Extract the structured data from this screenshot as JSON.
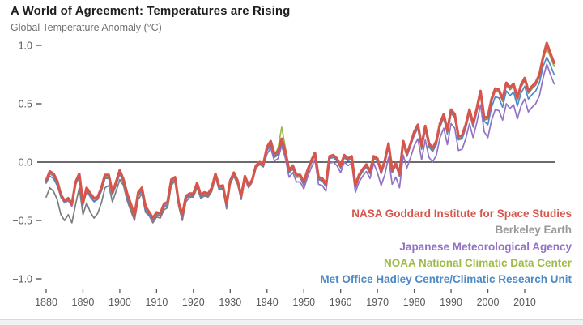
{
  "page": {
    "title": "A World of Agreement: Temperatures are Rising",
    "subtitle": "Global Temperature Anomaly (°C)"
  },
  "chart_data": {
    "type": "line",
    "title": "A World of Agreement: Temperatures are Rising",
    "ylabel": "Global Temperature Anomaly (°C)",
    "xlabel": "",
    "x_start": 1880,
    "x_end": 2018,
    "x_ticks": [
      1880,
      1890,
      1900,
      1910,
      1920,
      1930,
      1940,
      1950,
      1960,
      1970,
      1980,
      1990,
      2000,
      2010
    ],
    "y_ticks": [
      1.0,
      0.5,
      0.0,
      -0.5,
      -1.0
    ],
    "ylim": [
      -1.0,
      1.0
    ],
    "grid": false,
    "zero_line": true,
    "legend_position": "bottom-right",
    "axis_color": "#58595b",
    "zero_line_color": "#3a3a3c",
    "series": [
      {
        "name": "NASA Goddard Institute for Space Studies",
        "color": "#d6564c",
        "line_width": 3.2,
        "values": [
          -0.16,
          -0.08,
          -0.1,
          -0.16,
          -0.28,
          -0.33,
          -0.31,
          -0.36,
          -0.17,
          -0.1,
          -0.35,
          -0.22,
          -0.27,
          -0.31,
          -0.3,
          -0.22,
          -0.11,
          -0.11,
          -0.26,
          -0.17,
          -0.07,
          -0.15,
          -0.27,
          -0.36,
          -0.46,
          -0.26,
          -0.22,
          -0.38,
          -0.43,
          -0.48,
          -0.43,
          -0.44,
          -0.36,
          -0.34,
          -0.15,
          -0.13,
          -0.35,
          -0.45,
          -0.29,
          -0.27,
          -0.27,
          -0.18,
          -0.28,
          -0.26,
          -0.27,
          -0.22,
          -0.1,
          -0.21,
          -0.2,
          -0.36,
          -0.16,
          -0.09,
          -0.16,
          -0.29,
          -0.12,
          -0.2,
          -0.15,
          -0.03,
          0.0,
          -0.02,
          0.13,
          0.18,
          0.07,
          0.09,
          0.2,
          0.09,
          -0.07,
          -0.03,
          -0.11,
          -0.11,
          -0.17,
          -0.07,
          0.01,
          0.08,
          -0.13,
          -0.14,
          -0.19,
          0.05,
          0.06,
          0.03,
          -0.03,
          0.06,
          0.03,
          0.05,
          -0.2,
          -0.11,
          -0.06,
          -0.02,
          -0.08,
          0.05,
          0.03,
          -0.08,
          0.01,
          0.16,
          -0.07,
          -0.01,
          -0.1,
          0.18,
          0.07,
          0.16,
          0.26,
          0.32,
          0.14,
          0.31,
          0.16,
          0.12,
          0.18,
          0.33,
          0.41,
          0.27,
          0.45,
          0.41,
          0.22,
          0.23,
          0.32,
          0.45,
          0.33,
          0.46,
          0.61,
          0.38,
          0.39,
          0.54,
          0.63,
          0.62,
          0.54,
          0.68,
          0.64,
          0.67,
          0.55,
          0.66,
          0.72,
          0.61,
          0.65,
          0.68,
          0.75,
          0.9,
          1.02,
          0.93,
          0.85
        ]
      },
      {
        "name": "Berkeley Earth",
        "color": "#7b7c7f",
        "legend_color": "#98999b",
        "line_width": 1.7,
        "values": [
          -0.3,
          -0.22,
          -0.25,
          -0.32,
          -0.45,
          -0.5,
          -0.45,
          -0.52,
          -0.36,
          -0.22,
          -0.45,
          -0.35,
          -0.43,
          -0.48,
          -0.44,
          -0.35,
          -0.22,
          -0.2,
          -0.34,
          -0.25,
          -0.15,
          -0.2,
          -0.33,
          -0.42,
          -0.5,
          -0.32,
          -0.27,
          -0.43,
          -0.46,
          -0.52,
          -0.47,
          -0.48,
          -0.41,
          -0.39,
          -0.2,
          -0.16,
          -0.38,
          -0.5,
          -0.34,
          -0.3,
          -0.3,
          -0.22,
          -0.31,
          -0.29,
          -0.3,
          -0.25,
          -0.13,
          -0.24,
          -0.23,
          -0.4,
          -0.19,
          -0.12,
          -0.19,
          -0.32,
          -0.15,
          -0.22,
          -0.17,
          -0.05,
          -0.02,
          -0.04,
          0.1,
          0.14,
          0.04,
          0.06,
          0.16,
          0.06,
          -0.09,
          -0.06,
          -0.13,
          -0.13,
          -0.2,
          -0.09,
          -0.01,
          0.06,
          -0.15,
          -0.16,
          -0.21,
          0.03,
          0.04,
          0.01,
          -0.05,
          0.04,
          0.01,
          0.03,
          -0.22,
          -0.13,
          -0.08,
          -0.04,
          -0.1,
          0.03,
          0.01,
          -0.1,
          -0.01,
          0.14,
          -0.09,
          -0.03,
          -0.12,
          0.16,
          0.05,
          0.14,
          0.24,
          0.3,
          0.12,
          0.29,
          0.14,
          0.1,
          0.16,
          0.31,
          0.39,
          0.25,
          0.43,
          0.39,
          0.2,
          0.21,
          0.3,
          0.43,
          0.31,
          0.44,
          0.59,
          0.36,
          0.37,
          0.52,
          0.61,
          0.6,
          0.52,
          0.66,
          0.62,
          0.65,
          0.53,
          0.64,
          0.7,
          0.59,
          0.63,
          0.66,
          0.73,
          0.88,
          0.98,
          0.91,
          0.82
        ]
      },
      {
        "name": "Japanese Meteorological Agency",
        "color": "#9272c4",
        "line_width": 1.7,
        "values": [
          -0.18,
          -0.1,
          -0.12,
          -0.18,
          -0.3,
          -0.35,
          -0.33,
          -0.38,
          -0.19,
          -0.12,
          -0.37,
          -0.24,
          -0.29,
          -0.33,
          -0.32,
          -0.24,
          -0.13,
          -0.13,
          -0.28,
          -0.19,
          -0.09,
          -0.17,
          -0.29,
          -0.38,
          -0.48,
          -0.28,
          -0.24,
          -0.4,
          -0.45,
          -0.5,
          -0.45,
          -0.46,
          -0.38,
          -0.36,
          -0.17,
          -0.15,
          -0.37,
          -0.47,
          -0.31,
          -0.29,
          -0.29,
          -0.2,
          -0.3,
          -0.28,
          -0.29,
          -0.24,
          -0.12,
          -0.23,
          -0.22,
          -0.38,
          -0.18,
          -0.11,
          -0.18,
          -0.31,
          -0.14,
          -0.22,
          -0.17,
          -0.05,
          -0.02,
          -0.04,
          0.07,
          0.12,
          0.01,
          0.03,
          0.14,
          0.03,
          -0.13,
          -0.09,
          -0.17,
          -0.17,
          -0.23,
          -0.13,
          -0.05,
          0.02,
          -0.19,
          -0.2,
          -0.25,
          -0.01,
          0.0,
          -0.03,
          -0.09,
          0.0,
          -0.03,
          -0.01,
          -0.26,
          -0.17,
          -0.12,
          -0.08,
          -0.14,
          -0.01,
          -0.09,
          -0.2,
          -0.11,
          0.04,
          -0.19,
          -0.13,
          -0.22,
          0.06,
          -0.05,
          0.04,
          0.14,
          0.2,
          0.02,
          0.19,
          0.04,
          0.0,
          0.06,
          0.21,
          0.29,
          0.15,
          0.33,
          0.29,
          0.1,
          0.11,
          0.2,
          0.33,
          0.21,
          0.34,
          0.49,
          0.26,
          0.21,
          0.36,
          0.45,
          0.44,
          0.36,
          0.5,
          0.46,
          0.49,
          0.37,
          0.48,
          0.54,
          0.43,
          0.47,
          0.5,
          0.57,
          0.72,
          0.84,
          0.75,
          0.67
        ]
      },
      {
        "name": "NOAA National Climatic Data Center",
        "color": "#a0ba48",
        "line_width": 1.7,
        "values": [
          -0.17,
          -0.09,
          -0.11,
          -0.17,
          -0.29,
          -0.34,
          -0.32,
          -0.37,
          -0.18,
          -0.11,
          -0.36,
          -0.23,
          -0.28,
          -0.32,
          -0.31,
          -0.23,
          -0.12,
          -0.12,
          -0.27,
          -0.18,
          -0.08,
          -0.16,
          -0.28,
          -0.37,
          -0.47,
          -0.27,
          -0.23,
          -0.39,
          -0.44,
          -0.49,
          -0.44,
          -0.45,
          -0.37,
          -0.35,
          -0.16,
          -0.14,
          -0.36,
          -0.46,
          -0.3,
          -0.28,
          -0.28,
          -0.19,
          -0.29,
          -0.27,
          -0.28,
          -0.23,
          -0.11,
          -0.22,
          -0.21,
          -0.37,
          -0.17,
          -0.1,
          -0.17,
          -0.3,
          -0.13,
          -0.21,
          -0.16,
          -0.04,
          -0.01,
          -0.03,
          0.12,
          0.17,
          0.06,
          0.12,
          0.3,
          0.12,
          -0.08,
          -0.04,
          -0.12,
          -0.12,
          -0.18,
          -0.08,
          0.0,
          0.07,
          -0.14,
          -0.15,
          -0.2,
          0.04,
          0.05,
          0.02,
          -0.04,
          0.05,
          0.02,
          0.04,
          -0.21,
          -0.12,
          -0.07,
          -0.03,
          -0.09,
          0.04,
          0.02,
          -0.09,
          0.0,
          0.15,
          -0.08,
          -0.02,
          -0.11,
          0.17,
          0.06,
          0.15,
          0.25,
          0.31,
          0.13,
          0.3,
          0.15,
          0.11,
          0.17,
          0.32,
          0.4,
          0.26,
          0.44,
          0.4,
          0.21,
          0.22,
          0.31,
          0.44,
          0.32,
          0.45,
          0.6,
          0.37,
          0.38,
          0.53,
          0.62,
          0.61,
          0.53,
          0.67,
          0.63,
          0.66,
          0.54,
          0.65,
          0.71,
          0.6,
          0.64,
          0.67,
          0.74,
          0.89,
          0.97,
          0.9,
          0.82
        ]
      },
      {
        "name": "Met Office Hadley Centre/Climatic Research Unit",
        "color": "#4d8ac6",
        "line_width": 1.7,
        "values": [
          -0.18,
          -0.12,
          -0.14,
          -0.2,
          -0.3,
          -0.34,
          -0.32,
          -0.37,
          -0.19,
          -0.13,
          -0.36,
          -0.25,
          -0.3,
          -0.34,
          -0.32,
          -0.25,
          -0.14,
          -0.14,
          -0.28,
          -0.2,
          -0.1,
          -0.18,
          -0.3,
          -0.39,
          -0.47,
          -0.29,
          -0.25,
          -0.41,
          -0.45,
          -0.49,
          -0.45,
          -0.46,
          -0.39,
          -0.37,
          -0.18,
          -0.16,
          -0.37,
          -0.46,
          -0.31,
          -0.28,
          -0.29,
          -0.21,
          -0.3,
          -0.28,
          -0.29,
          -0.24,
          -0.12,
          -0.23,
          -0.22,
          -0.38,
          -0.18,
          -0.11,
          -0.18,
          -0.31,
          -0.14,
          -0.21,
          -0.16,
          -0.05,
          -0.02,
          -0.04,
          0.1,
          0.15,
          0.05,
          0.07,
          0.17,
          0.07,
          -0.09,
          -0.05,
          -0.13,
          -0.13,
          -0.19,
          -0.09,
          -0.01,
          0.06,
          -0.15,
          -0.16,
          -0.21,
          0.03,
          0.04,
          0.01,
          -0.05,
          0.04,
          0.01,
          0.03,
          -0.22,
          -0.13,
          -0.08,
          -0.04,
          -0.1,
          0.03,
          0.01,
          -0.1,
          -0.01,
          0.14,
          -0.09,
          -0.03,
          -0.12,
          0.16,
          0.05,
          0.14,
          0.23,
          0.29,
          0.11,
          0.28,
          0.13,
          0.09,
          0.15,
          0.3,
          0.38,
          0.24,
          0.42,
          0.38,
          0.19,
          0.2,
          0.29,
          0.42,
          0.3,
          0.43,
          0.58,
          0.35,
          0.32,
          0.47,
          0.56,
          0.55,
          0.47,
          0.61,
          0.57,
          0.6,
          0.48,
          0.59,
          0.65,
          0.54,
          0.58,
          0.61,
          0.68,
          0.82,
          0.9,
          0.83,
          0.75
        ]
      }
    ]
  }
}
